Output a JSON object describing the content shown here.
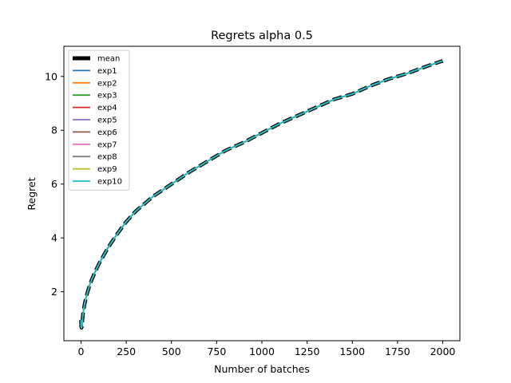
{
  "chart_data": {
    "type": "line",
    "title": "Regrets alpha 0.5",
    "xlabel": "Number of batches",
    "ylabel": "Regret",
    "xlim": [
      -95,
      2095
    ],
    "ylim": [
      0.18,
      11.12
    ],
    "xticks": [
      0,
      250,
      500,
      750,
      1000,
      1250,
      1500,
      1750,
      2000
    ],
    "yticks": [
      2,
      4,
      6,
      8,
      10
    ],
    "grid": false,
    "legend_position": "top-left",
    "x": [
      0,
      1,
      3,
      6,
      10,
      20,
      30,
      50,
      75,
      100,
      150,
      200,
      250,
      300,
      400,
      500,
      600,
      700,
      800,
      900,
      1000,
      1100,
      1200,
      1300,
      1400,
      1500,
      1600,
      1700,
      1800,
      1900,
      2000
    ],
    "mean": {
      "name": "mean",
      "color": "#000000",
      "values": [
        0.95,
        0.7,
        0.66,
        0.8,
        1.15,
        1.55,
        1.85,
        2.3,
        2.7,
        3.05,
        3.65,
        4.15,
        4.6,
        4.98,
        5.55,
        6.0,
        6.45,
        6.85,
        7.25,
        7.55,
        7.9,
        8.25,
        8.55,
        8.85,
        9.15,
        9.35,
        9.65,
        9.9,
        10.1,
        10.35,
        10.58
      ]
    },
    "series": [
      {
        "name": "exp1",
        "color": "#1f77b4"
      },
      {
        "name": "exp2",
        "color": "#ff7f0e"
      },
      {
        "name": "exp3",
        "color": "#2ca02c"
      },
      {
        "name": "exp4",
        "color": "#d62728"
      },
      {
        "name": "exp5",
        "color": "#9467bd"
      },
      {
        "name": "exp6",
        "color": "#8c564b"
      },
      {
        "name": "exp7",
        "color": "#e377c2"
      },
      {
        "name": "exp8",
        "color": "#7f7f7f"
      },
      {
        "name": "exp9",
        "color": "#bcbd22"
      },
      {
        "name": "exp10",
        "color": "#17becf"
      }
    ],
    "series_note_values_same_as_mean": true
  }
}
